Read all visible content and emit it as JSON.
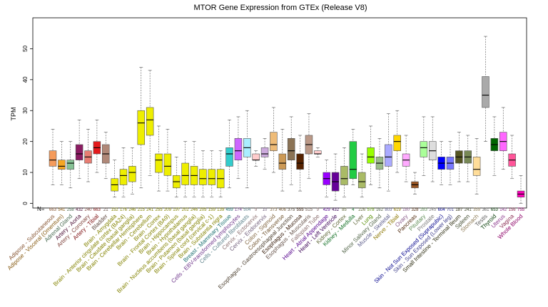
{
  "chart_data": {
    "type": "box",
    "title": "MTOR Gene Expression from GTEx (Release V8)",
    "ylabel": "TPM",
    "xlabel": "",
    "ylim": [
      0,
      55
    ],
    "yticks": [
      0,
      10,
      20,
      30,
      40,
      50
    ],
    "n_label": "N=",
    "grid": false,
    "legend": "none",
    "series": [
      {
        "name": "Adipose - Subcutaneous",
        "n": 663,
        "color": "#F59B5B",
        "q1": 12,
        "median": 14,
        "q3": 17,
        "whisker_low": 6,
        "whisker_high": 24
      },
      {
        "name": "Adipose - Visceral (Omentum)",
        "n": 541,
        "color": "#F5A623",
        "q1": 11,
        "median": 12,
        "q3": 14,
        "whisker_low": 6,
        "whisker_high": 20
      },
      {
        "name": "Adrenal Gland",
        "n": 258,
        "color": "#86C295",
        "q1": 11,
        "median": 13,
        "q3": 14,
        "whisker_low": 5,
        "whisker_high": 20
      },
      {
        "name": "Artery - Aorta",
        "n": 432,
        "color": "#8B1C62",
        "q1": 14,
        "median": 16,
        "q3": 19,
        "whisker_low": 8,
        "whisker_high": 27
      },
      {
        "name": "Artery - Coronary",
        "n": 240,
        "color": "#E87D72",
        "q1": 13,
        "median": 15,
        "q3": 17,
        "whisker_low": 7,
        "whisker_high": 24
      },
      {
        "name": "Artery - Tibial",
        "n": 663,
        "color": "#E41A1C",
        "q1": 16,
        "median": 18,
        "q3": 20,
        "whisker_low": 10,
        "whisker_high": 27
      },
      {
        "name": "Bladder",
        "n": 21,
        "color": "#B08878",
        "q1": 13,
        "median": 16,
        "q3": 19,
        "whisker_low": 8,
        "whisker_high": 23
      },
      {
        "name": "Brain - Amygdala",
        "n": 152,
        "color": "#EEEE00",
        "q1": 4,
        "median": 6,
        "q3": 8,
        "whisker_low": 2,
        "whisker_high": 14
      },
      {
        "name": "Brain - Anterior cingulate cortex (BA24)",
        "n": 176,
        "color": "#EEEE00",
        "q1": 6,
        "median": 9,
        "q3": 11,
        "whisker_low": 2,
        "whisker_high": 18
      },
      {
        "name": "Brain - Caudate (basal ganglia)",
        "n": 246,
        "color": "#EEEE00",
        "q1": 7,
        "median": 10,
        "q3": 12,
        "whisker_low": 3,
        "whisker_high": 18
      },
      {
        "name": "Brain - Cerebellar Hemisphere",
        "n": 215,
        "color": "#EEEE00",
        "q1": 19,
        "median": 26,
        "q3": 30,
        "whisker_low": 5,
        "whisker_high": 44
      },
      {
        "name": "Brain - Cerebellum",
        "n": 241,
        "color": "#EEEE00",
        "q1": 22,
        "median": 27,
        "q3": 31,
        "whisker_low": 9,
        "whisker_high": 43
      },
      {
        "name": "Brain - Cortex",
        "n": 255,
        "color": "#EEEE00",
        "q1": 10,
        "median": 14,
        "q3": 16,
        "whisker_low": 4,
        "whisker_high": 25
      },
      {
        "name": "Brain - Frontal Cortex (BA9)",
        "n": 209,
        "color": "#EEEE00",
        "q1": 9,
        "median": 12,
        "q3": 16,
        "whisker_low": 4,
        "whisker_high": 24
      },
      {
        "name": "Brain - Hippocampus",
        "n": 197,
        "color": "#EEEE00",
        "q1": 5,
        "median": 7,
        "q3": 9,
        "whisker_low": 2,
        "whisker_high": 15
      },
      {
        "name": "Brain - Hypothalamus",
        "n": 202,
        "color": "#EEEE00",
        "q1": 6,
        "median": 9,
        "q3": 13,
        "whisker_low": 2,
        "whisker_high": 20
      },
      {
        "name": "Brain - Nucleus accumbens (basal ganglia)",
        "n": 246,
        "color": "#EEEE00",
        "q1": 6,
        "median": 9,
        "q3": 12,
        "whisker_low": 2,
        "whisker_high": 20
      },
      {
        "name": "Brain - Putamen (basal ganglia)",
        "n": 205,
        "color": "#EEEE00",
        "q1": 6,
        "median": 8,
        "q3": 11,
        "whisker_low": 2,
        "whisker_high": 17
      },
      {
        "name": "Brain - Spinal cord (cervical c-1)",
        "n": 159,
        "color": "#EEEE00",
        "q1": 6,
        "median": 8,
        "q3": 11,
        "whisker_low": 2,
        "whisker_high": 17
      },
      {
        "name": "Brain - Substantia nigra",
        "n": 139,
        "color": "#EEEE00",
        "q1": 5,
        "median": 8,
        "q3": 11,
        "whisker_low": 2,
        "whisker_high": 17
      },
      {
        "name": "Breast - Mammary Tissue",
        "n": 459,
        "color": "#33CCCC",
        "q1": 12,
        "median": 16,
        "q3": 18,
        "whisker_low": 5,
        "whisker_high": 27
      },
      {
        "name": "Cells - EBV-transformed lymphocytes",
        "n": 174,
        "color": "#CC66FF",
        "q1": 14,
        "median": 17,
        "q3": 21,
        "whisker_low": 8,
        "whisker_high": 28
      },
      {
        "name": "Cells - Cultured fibroblasts",
        "n": 504,
        "color": "#AAEEFF",
        "q1": 15,
        "median": 18,
        "q3": 21,
        "whisker_low": 5,
        "whisker_high": 30
      },
      {
        "name": "Cervix - Ectocervix",
        "n": 9,
        "color": "#FFCCCC",
        "q1": 14,
        "median": 14,
        "q3": 16,
        "whisker_low": 12,
        "whisker_high": 17
      },
      {
        "name": "Cervix - Endocervix",
        "n": 10,
        "color": "#CCAADD",
        "q1": 15,
        "median": 16,
        "q3": 18,
        "whisker_low": 11,
        "whisker_high": 21
      },
      {
        "name": "Colon - Sigmoid",
        "n": 373,
        "color": "#EEBB77",
        "q1": 17,
        "median": 19,
        "q3": 23,
        "whisker_low": 10,
        "whisker_high": 31
      },
      {
        "name": "Colon - Transverse",
        "n": 406,
        "color": "#CC9955",
        "q1": 11,
        "median": 13,
        "q3": 16,
        "whisker_low": 4,
        "whisker_high": 24
      },
      {
        "name": "Esophagus - Gastroesophageal Junction",
        "n": 375,
        "color": "#8B7355",
        "q1": 14,
        "median": 17,
        "q3": 21,
        "whisker_low": 6,
        "whisker_high": 28
      },
      {
        "name": "Esophagus - Mucosa",
        "n": 555,
        "color": "#552200",
        "q1": 11,
        "median": 13,
        "q3": 16,
        "whisker_low": 4,
        "whisker_high": 22
      },
      {
        "name": "Esophagus - Muscularis",
        "n": 515,
        "color": "#BB9988",
        "q1": 16,
        "median": 19,
        "q3": 22,
        "whisker_low": 8,
        "whisker_high": 29
      },
      {
        "name": "Fallopian Tube",
        "n": 9,
        "color": "#FFCCCC",
        "q1": 16,
        "median": 16,
        "q3": 17,
        "whisker_low": 15,
        "whisker_high": 18
      },
      {
        "name": "Heart - Atrial Appendage",
        "n": 429,
        "color": "#9900FF",
        "q1": 6,
        "median": 8,
        "q3": 10,
        "whisker_low": 2,
        "whisker_high": 14
      },
      {
        "name": "Heart - Left Ventricle",
        "n": 432,
        "color": "#660099",
        "q1": 4,
        "median": 7,
        "q3": 10,
        "whisker_low": 1,
        "whisker_high": 16
      },
      {
        "name": "Kidney - Cortex",
        "n": 85,
        "color": "#AABB66",
        "q1": 6,
        "median": 8,
        "q3": 12,
        "whisker_low": 2,
        "whisker_high": 18
      },
      {
        "name": "Kidney - Medulla",
        "n": 4,
        "color": "#22CC44",
        "q1": 8,
        "median": 11,
        "q3": 20,
        "whisker_low": 6,
        "whisker_high": 24
      },
      {
        "name": "Liver",
        "n": 226,
        "color": "#AABB66",
        "q1": 5,
        "median": 7,
        "q3": 10,
        "whisker_low": 2,
        "whisker_high": 16
      },
      {
        "name": "Lung",
        "n": 578,
        "color": "#99FF00",
        "q1": 13,
        "median": 15,
        "q3": 18,
        "whisker_low": 6,
        "whisker_high": 25
      },
      {
        "name": "Minor Salivary Gland",
        "n": 162,
        "color": "#99BB88",
        "q1": 11,
        "median": 13,
        "q3": 15,
        "whisker_low": 5,
        "whisker_high": 21
      },
      {
        "name": "Muscle - Skeletal",
        "n": 803,
        "color": "#AAAAFF",
        "q1": 12,
        "median": 15,
        "q3": 19,
        "whisker_low": 4,
        "whisker_high": 29
      },
      {
        "name": "Nerve - Tibial",
        "n": 619,
        "color": "#FFD700",
        "q1": 17,
        "median": 20,
        "q3": 22,
        "whisker_low": 10,
        "whisker_high": 30
      },
      {
        "name": "Ovary",
        "n": 180,
        "color": "#FFAAFF",
        "q1": 12,
        "median": 14,
        "q3": 16,
        "whisker_low": 7,
        "whisker_high": 22
      },
      {
        "name": "Pancreas",
        "n": 328,
        "color": "#995522",
        "q1": 5,
        "median": 6,
        "q3": 7,
        "whisker_low": 3,
        "whisker_high": 10
      },
      {
        "name": "Pituitary",
        "n": 283,
        "color": "#AAFF99",
        "q1": 15,
        "median": 18,
        "q3": 20,
        "whisker_low": 9,
        "whisker_high": 28
      },
      {
        "name": "Prostate",
        "n": 245,
        "color": "#DDDDDD",
        "q1": 14,
        "median": 17,
        "q3": 20,
        "whisker_low": 7,
        "whisker_high": 28
      },
      {
        "name": "Skin - Not Sun Exposed (Suprapubic)",
        "n": 604,
        "color": "#0000FF",
        "q1": 11,
        "median": 13,
        "q3": 15,
        "whisker_low": 6,
        "whisker_high": 20
      },
      {
        "name": "Skin - Sun Exposed (Lower leg)",
        "n": 701,
        "color": "#7777FF",
        "q1": 11,
        "median": 13,
        "q3": 15,
        "whisker_low": 6,
        "whisker_high": 20
      },
      {
        "name": "Small Intestine - Terminal Ileum",
        "n": 187,
        "color": "#555522",
        "q1": 13,
        "median": 15,
        "q3": 17,
        "whisker_low": 7,
        "whisker_high": 23
      },
      {
        "name": "Spleen",
        "n": 241,
        "color": "#778855",
        "q1": 13,
        "median": 15,
        "q3": 17,
        "whisker_low": 7,
        "whisker_high": 22
      },
      {
        "name": "Stomach",
        "n": 359,
        "color": "#FFDD99",
        "q1": 9,
        "median": 11,
        "q3": 15,
        "whisker_low": 3,
        "whisker_high": 21
      },
      {
        "name": "Testis",
        "n": 361,
        "color": "#AAAAAA",
        "q1": 31,
        "median": 35,
        "q3": 41,
        "whisker_low": 20,
        "whisker_high": 54
      },
      {
        "name": "Thyroid",
        "n": 653,
        "color": "#006600",
        "q1": 17,
        "median": 19,
        "q3": 21,
        "whisker_low": 9,
        "whisker_high": 28
      },
      {
        "name": "Uterus",
        "n": 142,
        "color": "#FF66FF",
        "q1": 17,
        "median": 20,
        "q3": 23,
        "whisker_low": 11,
        "whisker_high": 31
      },
      {
        "name": "Vagina",
        "n": 156,
        "color": "#FF5599",
        "q1": 12,
        "median": 14,
        "q3": 16,
        "whisker_low": 8,
        "whisker_high": 22
      },
      {
        "name": "Whole Blood",
        "n": 755,
        "color": "#FF00BB",
        "q1": 2,
        "median": 3,
        "q3": 4,
        "whisker_low": 0,
        "whisker_high": 9
      }
    ]
  }
}
